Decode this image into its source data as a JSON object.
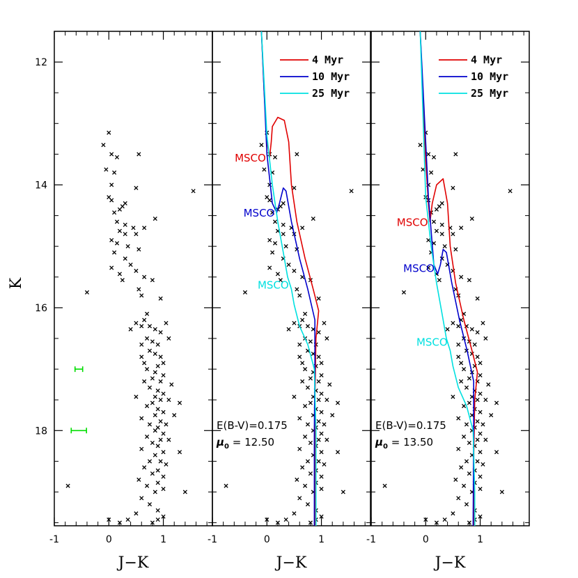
{
  "chart_data": {
    "type": "scatter",
    "ylabel": "K",
    "xlabel": "J−K",
    "xlim": [
      -1.0,
      1.9
    ],
    "ylim": [
      19.55,
      11.5
    ],
    "y_inverted": true,
    "x_ticks": [
      -1,
      0,
      1
    ],
    "x_tick_labels": [
      "-1",
      "0",
      "1"
    ],
    "y_ticks": [
      12,
      14,
      16,
      18
    ],
    "y_tick_labels": [
      "12",
      "14",
      "16",
      "18"
    ],
    "colors": {
      "4": "#e00000",
      "10": "#0000cc",
      "25": "#00e0e0",
      "points": "#000000",
      "errorbar": "#00dd00"
    },
    "stars": [
      [
        0.0,
        13.15
      ],
      [
        -0.1,
        13.35
      ],
      [
        0.05,
        13.5
      ],
      [
        0.15,
        13.55
      ],
      [
        0.55,
        13.5
      ],
      [
        -0.05,
        13.75
      ],
      [
        0.1,
        13.8
      ],
      [
        0.05,
        14.0
      ],
      [
        0.5,
        14.05
      ],
      [
        1.55,
        14.1
      ],
      [
        0.0,
        14.2
      ],
      [
        0.05,
        14.25
      ],
      [
        0.3,
        14.3
      ],
      [
        0.25,
        14.35
      ],
      [
        0.2,
        14.4
      ],
      [
        0.1,
        14.45
      ],
      [
        0.15,
        14.6
      ],
      [
        0.3,
        14.65
      ],
      [
        0.85,
        14.55
      ],
      [
        0.65,
        14.7
      ],
      [
        0.45,
        14.7
      ],
      [
        0.2,
        14.75
      ],
      [
        0.3,
        14.8
      ],
      [
        0.5,
        14.8
      ],
      [
        0.05,
        14.9
      ],
      [
        0.15,
        14.95
      ],
      [
        0.35,
        15.0
      ],
      [
        0.55,
        15.05
      ],
      [
        0.1,
        15.1
      ],
      [
        0.3,
        15.2
      ],
      [
        0.4,
        15.3
      ],
      [
        0.05,
        15.35
      ],
      [
        0.5,
        15.4
      ],
      [
        0.2,
        15.45
      ],
      [
        0.25,
        15.55
      ],
      [
        0.65,
        15.5
      ],
      [
        0.8,
        15.55
      ],
      [
        0.55,
        15.7
      ],
      [
        -0.4,
        15.75
      ],
      [
        0.6,
        15.8
      ],
      [
        0.95,
        15.85
      ],
      [
        0.7,
        16.1
      ],
      [
        0.65,
        16.2
      ],
      [
        0.6,
        16.3
      ],
      [
        0.4,
        16.35
      ],
      [
        0.5,
        16.25
      ],
      [
        0.75,
        16.3
      ],
      [
        0.85,
        16.35
      ],
      [
        0.95,
        16.4
      ],
      [
        1.05,
        16.25
      ],
      [
        0.7,
        16.5
      ],
      [
        0.8,
        16.55
      ],
      [
        0.9,
        16.6
      ],
      [
        0.6,
        16.6
      ],
      [
        1.1,
        16.5
      ],
      [
        0.75,
        16.7
      ],
      [
        0.85,
        16.75
      ],
      [
        0.95,
        16.8
      ],
      [
        0.6,
        16.8
      ],
      [
        0.65,
        16.9
      ],
      [
        0.9,
        16.95
      ],
      [
        1.0,
        16.9
      ],
      [
        0.7,
        17.0
      ],
      [
        0.85,
        17.05
      ],
      [
        1.0,
        17.1
      ],
      [
        0.8,
        17.15
      ],
      [
        0.95,
        17.2
      ],
      [
        0.65,
        17.2
      ],
      [
        1.15,
        17.25
      ],
      [
        0.75,
        17.3
      ],
      [
        0.9,
        17.35
      ],
      [
        1.0,
        17.4
      ],
      [
        0.85,
        17.45
      ],
      [
        0.5,
        17.45
      ],
      [
        0.95,
        17.5
      ],
      [
        1.1,
        17.5
      ],
      [
        0.8,
        17.55
      ],
      [
        1.3,
        17.55
      ],
      [
        0.7,
        17.6
      ],
      [
        0.9,
        17.65
      ],
      [
        1.0,
        17.7
      ],
      [
        0.85,
        17.75
      ],
      [
        1.2,
        17.75
      ],
      [
        0.6,
        17.8
      ],
      [
        0.95,
        17.85
      ],
      [
        0.75,
        17.9
      ],
      [
        1.05,
        17.9
      ],
      [
        0.9,
        17.95
      ],
      [
        0.85,
        18.0
      ],
      [
        1.0,
        18.05
      ],
      [
        0.7,
        18.1
      ],
      [
        0.95,
        18.15
      ],
      [
        1.1,
        18.15
      ],
      [
        0.8,
        18.2
      ],
      [
        0.9,
        18.25
      ],
      [
        0.6,
        18.3
      ],
      [
        1.0,
        18.35
      ],
      [
        1.3,
        18.35
      ],
      [
        0.85,
        18.4
      ],
      [
        0.75,
        18.5
      ],
      [
        0.95,
        18.5
      ],
      [
        1.05,
        18.55
      ],
      [
        0.65,
        18.6
      ],
      [
        0.9,
        18.65
      ],
      [
        0.8,
        18.7
      ],
      [
        1.0,
        18.75
      ],
      [
        0.55,
        18.8
      ],
      [
        0.9,
        18.85
      ],
      [
        0.7,
        18.9
      ],
      [
        1.0,
        18.95
      ],
      [
        -0.75,
        18.9
      ],
      [
        0.85,
        19.0
      ],
      [
        0.6,
        19.1
      ],
      [
        1.4,
        19.0
      ],
      [
        0.75,
        19.2
      ],
      [
        0.9,
        19.3
      ],
      [
        0.5,
        19.35
      ],
      [
        0.0,
        19.45
      ],
      [
        0.35,
        19.45
      ],
      [
        0.9,
        19.45
      ],
      [
        0.2,
        19.5
      ],
      [
        1.0,
        19.4
      ],
      [
        0.8,
        19.5
      ]
    ],
    "error_bars": [
      {
        "x": -0.55,
        "y": 17.0,
        "dx": 0.07
      },
      {
        "x": -0.55,
        "y": 18.0,
        "dx": 0.14
      }
    ],
    "panels": [
      {
        "name": "observed",
        "show_y_tick_labels": true,
        "isochrones": [],
        "error_bars_shown": true
      },
      {
        "name": "fit-12.50",
        "show_y_tick_labels": false,
        "legend": [
          {
            "label": "4 Myr",
            "color": "#e00000"
          },
          {
            "label": "10 Myr",
            "color": "#0000cc"
          },
          {
            "label": "25 Myr",
            "color": "#00e0e0"
          }
        ],
        "params_line1": "E(B-V)=0.175",
        "params_mu_prefix": "μ",
        "params_mu_sub": "0",
        "params_mu_value": " =  12.50",
        "isochrones": [
          {
            "age": "4 Myr",
            "color": "#e00000",
            "points": [
              [
                -0.1,
                11.5
              ],
              [
                -0.05,
                12.5
              ],
              [
                0.0,
                13.3
              ],
              [
                0.05,
                13.55
              ],
              [
                0.08,
                13.3
              ],
              [
                0.1,
                13.05
              ],
              [
                0.2,
                12.9
              ],
              [
                0.32,
                12.95
              ],
              [
                0.4,
                13.3
              ],
              [
                0.45,
                14.0
              ],
              [
                0.55,
                14.6
              ],
              [
                0.7,
                15.2
              ],
              [
                0.85,
                15.7
              ],
              [
                0.95,
                16.05
              ],
              [
                0.9,
                16.5
              ],
              [
                0.88,
                17.5
              ],
              [
                0.88,
                19.55
              ]
            ]
          },
          {
            "age": "10 Myr",
            "color": "#0000cc",
            "points": [
              [
                -0.1,
                11.5
              ],
              [
                0.0,
                13.5
              ],
              [
                0.1,
                14.3
              ],
              [
                0.18,
                14.45
              ],
              [
                0.23,
                14.3
              ],
              [
                0.3,
                14.05
              ],
              [
                0.35,
                14.1
              ],
              [
                0.45,
                14.6
              ],
              [
                0.6,
                15.2
              ],
              [
                0.75,
                15.7
              ],
              [
                0.88,
                16.2
              ],
              [
                0.88,
                17.0
              ],
              [
                0.87,
                18.0
              ],
              [
                0.87,
                19.55
              ]
            ]
          },
          {
            "age": "25 Myr",
            "color": "#00e0e0",
            "points": [
              [
                -0.1,
                11.5
              ],
              [
                0.0,
                13.2
              ],
              [
                0.1,
                14.0
              ],
              [
                0.2,
                14.6
              ],
              [
                0.3,
                15.1
              ],
              [
                0.38,
                15.5
              ],
              [
                0.45,
                15.7
              ],
              [
                0.5,
                15.95
              ],
              [
                0.6,
                16.3
              ],
              [
                0.75,
                16.6
              ],
              [
                0.87,
                17.0
              ],
              [
                0.9,
                18.0
              ],
              [
                0.9,
                19.55
              ]
            ]
          }
        ],
        "msco_markers": [
          {
            "label": "MSCO",
            "color": "#e00000",
            "anchor": [
              0.02,
              13.55
            ]
          },
          {
            "label": "MSCO",
            "color": "#0000cc",
            "anchor": [
              0.18,
              14.45
            ]
          },
          {
            "label": "MSCO",
            "color": "#00e0e0",
            "anchor": [
              0.44,
              15.62
            ]
          }
        ]
      },
      {
        "name": "fit-13.50",
        "show_y_tick_labels": false,
        "legend": [
          {
            "label": "4 Myr",
            "color": "#e00000"
          },
          {
            "label": "10 Myr",
            "color": "#0000cc"
          },
          {
            "label": "25 Myr",
            "color": "#00e0e0"
          }
        ],
        "params_line1": "E(B-V)=0.175",
        "params_mu_prefix": "μ",
        "params_mu_sub": "0",
        "params_mu_value": " =  13.50",
        "isochrones": [
          {
            "age": "4 Myr",
            "color": "#e00000",
            "points": [
              [
                -0.1,
                11.5
              ],
              [
                0.0,
                13.6
              ],
              [
                0.05,
                14.3
              ],
              [
                0.08,
                14.6
              ],
              [
                0.12,
                14.3
              ],
              [
                0.2,
                14.0
              ],
              [
                0.32,
                13.9
              ],
              [
                0.4,
                14.3
              ],
              [
                0.45,
                15.0
              ],
              [
                0.55,
                15.6
              ],
              [
                0.7,
                16.2
              ],
              [
                0.85,
                16.7
              ],
              [
                0.95,
                17.05
              ],
              [
                0.9,
                17.5
              ],
              [
                0.88,
                18.5
              ],
              [
                0.88,
                19.55
              ]
            ]
          },
          {
            "age": "10 Myr",
            "color": "#0000cc",
            "points": [
              [
                -0.1,
                11.5
              ],
              [
                0.05,
                14.2
              ],
              [
                0.15,
                15.3
              ],
              [
                0.22,
                15.45
              ],
              [
                0.27,
                15.3
              ],
              [
                0.32,
                15.05
              ],
              [
                0.38,
                15.1
              ],
              [
                0.48,
                15.6
              ],
              [
                0.62,
                16.2
              ],
              [
                0.76,
                16.7
              ],
              [
                0.88,
                17.2
              ],
              [
                0.88,
                18.0
              ],
              [
                0.87,
                19.55
              ]
            ]
          },
          {
            "age": "25 Myr",
            "color": "#00e0e0",
            "points": [
              [
                -0.1,
                11.5
              ],
              [
                0.0,
                14.2
              ],
              [
                0.1,
                15.0
              ],
              [
                0.2,
                15.6
              ],
              [
                0.3,
                16.1
              ],
              [
                0.38,
                16.5
              ],
              [
                0.45,
                16.7
              ],
              [
                0.5,
                16.95
              ],
              [
                0.6,
                17.3
              ],
              [
                0.75,
                17.6
              ],
              [
                0.87,
                18.0
              ],
              [
                0.9,
                19.0
              ],
              [
                0.9,
                19.55
              ]
            ]
          }
        ],
        "msco_markers": [
          {
            "label": "MSCO",
            "color": "#e00000",
            "anchor": [
              0.08,
              14.6
            ]
          },
          {
            "label": "MSCO",
            "color": "#0000cc",
            "anchor": [
              0.2,
              15.35
            ]
          },
          {
            "label": "MSCO",
            "color": "#00e0e0",
            "anchor": [
              0.44,
              16.55
            ]
          }
        ]
      }
    ]
  }
}
